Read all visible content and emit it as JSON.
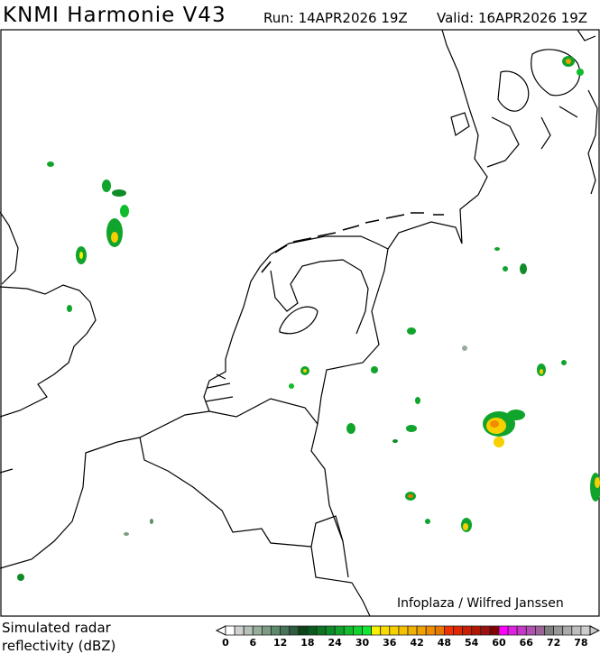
{
  "header": {
    "title": "KNMI Harmonie V43",
    "run": "Run: 14APR2026 19Z",
    "valid": "Valid: 16APR2026 19Z"
  },
  "map": {
    "credit": "Infoplaza / Wilfred Janssen"
  },
  "legend": {
    "title_line1": "Simulated radar",
    "title_line2": "reflectivity (dBZ)",
    "tick_labels": [
      "0",
      "6",
      "12",
      "18",
      "24",
      "30",
      "36",
      "42",
      "48",
      "54",
      "60",
      "66",
      "72",
      "78"
    ],
    "colors": [
      "#ffffff",
      "#d0d0d0",
      "#b4c0b8",
      "#98ac9c",
      "#7c9c84",
      "#5e8a6c",
      "#467258",
      "#2e5c3e",
      "#0c4418",
      "#0a5a1c",
      "#0c7424",
      "#0e8c28",
      "#10a42c",
      "#10bc2c",
      "#10d430",
      "#10e834",
      "#f8f000",
      "#f8dc00",
      "#f8d000",
      "#f4c000",
      "#f0b000",
      "#f0a000",
      "#f08c00",
      "#e87800",
      "#f03000",
      "#e02800",
      "#c82000",
      "#b01800",
      "#9c1010",
      "#800000",
      "#ff00ff",
      "#e020e0",
      "#c838c8",
      "#b050b0",
      "#9c6498",
      "#808080",
      "#969696",
      "#aaaaaa",
      "#bebebe",
      "#cccccc"
    ]
  }
}
